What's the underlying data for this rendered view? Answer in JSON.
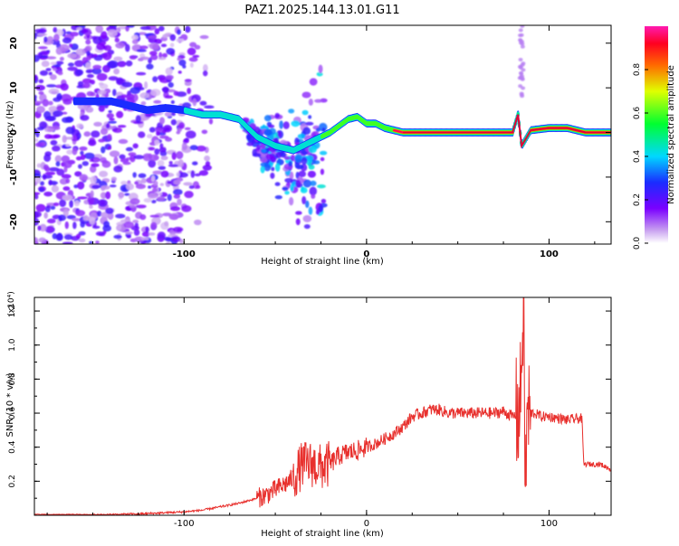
{
  "title": "PAZ1.2025.144.13.01.G11",
  "colors": {
    "snr_line": "#e8302d",
    "track_core": "#e0003a",
    "background": "#ffffff"
  },
  "chart_data": [
    {
      "type": "heatmap",
      "xlabel": "Height of straight line (km)",
      "ylabel": "Frequency (Hz)",
      "xlim": [
        -182,
        134
      ],
      "ylim": [
        -25,
        24
      ],
      "xticks": [
        -100,
        0,
        100
      ],
      "yticks": [
        20,
        10,
        0,
        -10,
        -20
      ],
      "colorbar": {
        "label": "Normalized spectral amplitude",
        "range": [
          0,
          1
        ],
        "ticks": [
          0.0,
          0.2,
          0.4,
          0.6,
          0.8
        ],
        "tick_labels": [
          "0.0",
          "0.2",
          "0.4",
          "0.6",
          "0.8"
        ],
        "colormap": "rainbow (white-violet-blue-cyan-green-yellow-red-magenta)"
      },
      "track": {
        "x": [
          -150,
          -140,
          -130,
          -120,
          -110,
          -100,
          -90,
          -80,
          -70,
          -60,
          -50,
          -40,
          -30,
          -25,
          -20,
          -10,
          -5,
          0,
          5,
          10,
          20,
          40,
          60,
          80,
          83,
          85,
          90,
          100,
          110,
          120,
          134
        ],
        "y": [
          7,
          7,
          6,
          5,
          5.5,
          5,
          4,
          4,
          3,
          -1,
          -3,
          -4,
          -2,
          -1,
          0,
          3,
          3.5,
          2,
          2,
          1,
          0,
          0,
          0,
          0,
          4,
          -3,
          0.5,
          1,
          1,
          0,
          0
        ]
      }
    },
    {
      "type": "line",
      "xlabel": "Height of straight line (km)",
      "ylabel": "SNR (10 * v/v)",
      "scale_label": "(x10⁴)",
      "xlim": [
        -182,
        134
      ],
      "ylim": [
        0,
        1.28
      ],
      "xticks": [
        -100,
        0,
        100
      ],
      "yticks": [
        0.2,
        0.4,
        0.6,
        0.8,
        1.0,
        1.2
      ],
      "ytick_labels": [
        "0.2",
        "0.4",
        "0.6",
        "0.8",
        "1.0",
        "1.2"
      ],
      "series": [
        {
          "x": [
            -182,
            -150,
            -120,
            -100,
            -90,
            -80,
            -70,
            -60,
            -55,
            -50,
            -45,
            -40,
            -35,
            -30,
            -25,
            -20,
            -15,
            -10,
            -5,
            0,
            5,
            10,
            15,
            20,
            25,
            30,
            35,
            40,
            45,
            50,
            55,
            60,
            65,
            70,
            75,
            80,
            84,
            86,
            87,
            88,
            92,
            96,
            100,
            110,
            118,
            119,
            122,
            128,
            134
          ],
          "y": [
            0.0,
            0.0,
            0.01,
            0.02,
            0.03,
            0.05,
            0.07,
            0.1,
            0.12,
            0.15,
            0.18,
            0.22,
            0.3,
            0.3,
            0.28,
            0.3,
            0.35,
            0.37,
            0.38,
            0.4,
            0.42,
            0.45,
            0.48,
            0.52,
            0.58,
            0.6,
            0.62,
            0.62,
            0.6,
            0.6,
            0.6,
            0.6,
            0.6,
            0.6,
            0.61,
            0.58,
            0.6,
            1.25,
            0.12,
            0.6,
            0.6,
            0.58,
            0.58,
            0.56,
            0.57,
            0.3,
            0.3,
            0.3,
            0.27
          ]
        }
      ]
    }
  ]
}
